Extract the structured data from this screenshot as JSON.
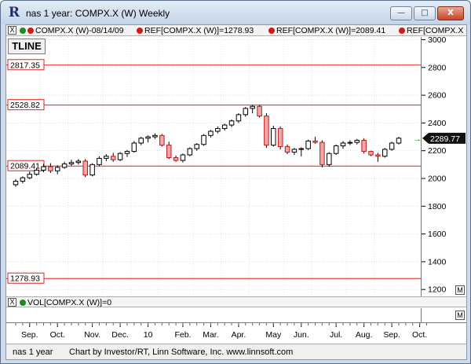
{
  "window": {
    "title": "nas 1 year: COMPX.X (W) Weekly",
    "minimize_glyph": "—",
    "maximize_glyph": "□",
    "close_glyph": "X"
  },
  "legend": {
    "close_box": "X",
    "items": [
      "COMPX.X (W)-08/14/09",
      "REF[COMPX.X (W)]=1278.93",
      "REF[COMPX.X (W)]=2089.41",
      "REF[COMPX.X (W)"
    ],
    "dot_colors": [
      "#1f8a1f",
      "#d01b1b",
      "#d01b1b",
      "#d01b1b"
    ]
  },
  "toolbar": {
    "tline_label": "TLINE"
  },
  "price_axis": {
    "labels": [
      "3000",
      "2800",
      "2600",
      "2400",
      "2200",
      "2000",
      "1800",
      "1600",
      "1400",
      "1200"
    ],
    "current_price": "2289.77",
    "m_label": "M"
  },
  "ref_lines": [
    {
      "label": "2817.35",
      "value": 2817.35
    },
    {
      "label": "2528.82",
      "value": 2528.82
    },
    {
      "label": "2089.41",
      "value": 2089.41
    },
    {
      "label": "1278.93",
      "value": 1278.93
    }
  ],
  "volume": {
    "close_box": "X",
    "label": "VOL[COMPX.X (W)]=0",
    "m_label": "M"
  },
  "date_axis": {
    "labels": [
      "Sep.",
      "Oct.",
      "Nov.",
      "Dec.",
      "10",
      "Feb.",
      "Mar.",
      "Apr.",
      "May",
      "Jun.",
      "Jul.",
      "Aug.",
      "Sep.",
      "Oct."
    ]
  },
  "status": {
    "left": "nas 1 year",
    "credit": "Chart by Investor/RT, Linn Software, Inc. www.linnsoft.com"
  },
  "chart_data": {
    "type": "candlestick",
    "title": "COMPX.X (W) Weekly",
    "ylim": [
      1150,
      3020
    ],
    "y_ticks": [
      1200,
      1400,
      1600,
      1800,
      2000,
      2200,
      2400,
      2600,
      2800,
      3000
    ],
    "grid": true,
    "ohlc": [
      [
        1955,
        1995,
        1940,
        1980
      ],
      [
        1980,
        2015,
        1965,
        2005
      ],
      [
        2005,
        2050,
        1995,
        2030
      ],
      [
        2030,
        2075,
        2020,
        2060
      ],
      [
        2060,
        2105,
        2045,
        2085
      ],
      [
        2085,
        2110,
        2040,
        2055
      ],
      [
        2055,
        2095,
        2030,
        2080
      ],
      [
        2080,
        2120,
        2070,
        2105
      ],
      [
        2105,
        2135,
        2090,
        2115
      ],
      [
        2115,
        2140,
        2100,
        2125
      ],
      [
        2125,
        2140,
        2010,
        2025
      ],
      [
        2025,
        2110,
        2015,
        2100
      ],
      [
        2100,
        2160,
        2090,
        2145
      ],
      [
        2145,
        2175,
        2125,
        2160
      ],
      [
        2160,
        2185,
        2120,
        2135
      ],
      [
        2135,
        2190,
        2125,
        2180
      ],
      [
        2180,
        2205,
        2155,
        2195
      ],
      [
        2195,
        2270,
        2185,
        2255
      ],
      [
        2255,
        2300,
        2240,
        2290
      ],
      [
        2290,
        2310,
        2260,
        2300
      ],
      [
        2300,
        2325,
        2285,
        2310
      ],
      [
        2310,
        2320,
        2230,
        2240
      ],
      [
        2240,
        2265,
        2140,
        2150
      ],
      [
        2150,
        2165,
        2120,
        2130
      ],
      [
        2130,
        2180,
        2115,
        2170
      ],
      [
        2170,
        2225,
        2160,
        2215
      ],
      [
        2215,
        2255,
        2200,
        2245
      ],
      [
        2245,
        2320,
        2235,
        2310
      ],
      [
        2310,
        2350,
        2295,
        2340
      ],
      [
        2340,
        2375,
        2325,
        2360
      ],
      [
        2360,
        2395,
        2345,
        2385
      ],
      [
        2385,
        2425,
        2370,
        2415
      ],
      [
        2415,
        2470,
        2400,
        2460
      ],
      [
        2460,
        2515,
        2445,
        2505
      ],
      [
        2505,
        2530,
        2470,
        2520
      ],
      [
        2520,
        2530,
        2440,
        2450
      ],
      [
        2450,
        2470,
        2220,
        2240
      ],
      [
        2240,
        2380,
        2230,
        2360
      ],
      [
        2360,
        2375,
        2210,
        2230
      ],
      [
        2230,
        2245,
        2175,
        2190
      ],
      [
        2190,
        2220,
        2170,
        2210
      ],
      [
        2210,
        2225,
        2160,
        2215
      ],
      [
        2215,
        2280,
        2205,
        2270
      ],
      [
        2270,
        2300,
        2250,
        2260
      ],
      [
        2260,
        2275,
        2080,
        2100
      ],
      [
        2100,
        2190,
        2085,
        2180
      ],
      [
        2180,
        2245,
        2170,
        2235
      ],
      [
        2235,
        2270,
        2215,
        2255
      ],
      [
        2255,
        2275,
        2240,
        2260
      ],
      [
        2260,
        2285,
        2245,
        2275
      ],
      [
        2275,
        2290,
        2180,
        2195
      ],
      [
        2195,
        2200,
        2160,
        2170
      ],
      [
        2170,
        2185,
        2120,
        2160
      ],
      [
        2160,
        2220,
        2150,
        2210
      ],
      [
        2210,
        2265,
        2200,
        2255
      ],
      [
        2255,
        2300,
        2245,
        2290
      ]
    ]
  }
}
